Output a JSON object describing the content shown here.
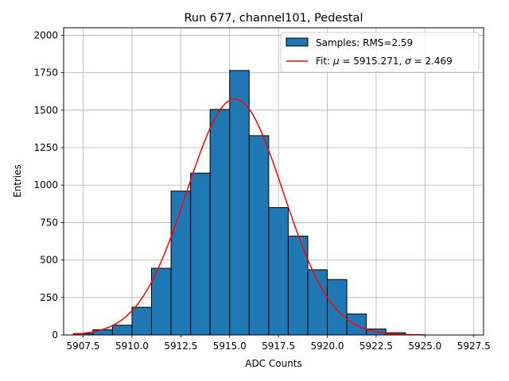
{
  "chart_data": {
    "type": "bar",
    "title": "Run 677, channel101, Pedestal",
    "xlabel": "ADC Counts",
    "ylabel": "Entries",
    "xlim": [
      5906.5,
      5928.0
    ],
    "ylim": [
      0,
      2050
    ],
    "grid": true,
    "legend_position": "top-right",
    "xticks": [
      5907.5,
      5910.0,
      5912.5,
      5915.0,
      5917.5,
      5920.0,
      5922.5,
      5925.0,
      5927.5
    ],
    "xtick_labels": [
      "5907.5",
      "5910.0",
      "5912.5",
      "5915.0",
      "5917.5",
      "5920.0",
      "5922.5",
      "5925.0",
      "5927.5"
    ],
    "yticks": [
      0,
      250,
      500,
      750,
      1000,
      1250,
      1500,
      1750,
      2000
    ],
    "ytick_labels": [
      "0",
      "250",
      "500",
      "750",
      "1000",
      "1250",
      "1500",
      "1750",
      "2000"
    ],
    "histogram": {
      "name": "Samples: RMS=2.59",
      "bin_edges": [
        5907,
        5908,
        5909,
        5910,
        5911,
        5912,
        5913,
        5914,
        5915,
        5916,
        5917,
        5918,
        5919,
        5920,
        5921,
        5922,
        5923,
        5924,
        5925,
        5926,
        5927
      ],
      "values": [
        10,
        35,
        65,
        185,
        445,
        960,
        1080,
        1505,
        1765,
        1330,
        850,
        660,
        435,
        370,
        140,
        40,
        15,
        0,
        0,
        0
      ],
      "color": "#1f77b4",
      "edge_color": "#000000"
    },
    "fit": {
      "name": "Fit: μ = 5915.271, σ = 2.469",
      "legend_prefix": "Fit: ",
      "mu_symbol": "μ",
      "mu_text": " = 5915.271, ",
      "sigma_symbol": "σ",
      "sigma_text": " = 2.469",
      "mu": 5915.271,
      "sigma": 2.469,
      "amplitude": 1575,
      "x_range": [
        5907,
        5925
      ],
      "color": "#ff0000"
    }
  }
}
